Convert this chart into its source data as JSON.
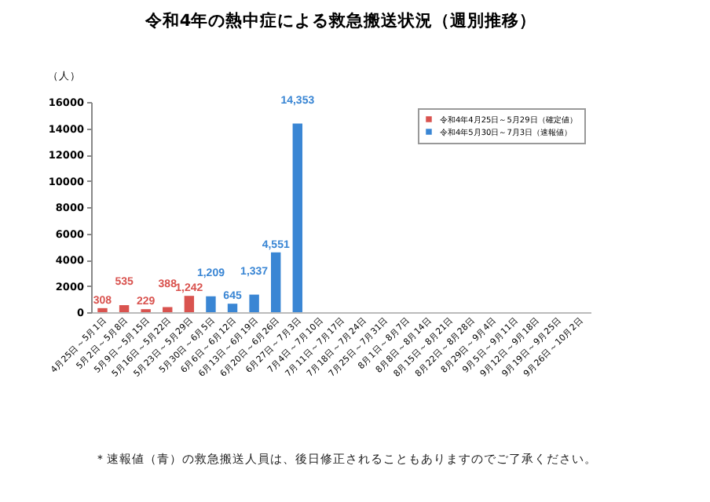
{
  "chart_data": {
    "type": "bar",
    "title": "令和4年の熱中症による救急搬送状況（週別推移）",
    "ylabel": "（人）",
    "categories": [
      "4月25日～5月1日",
      "5月2日～5月8日",
      "5月9日～5月15日",
      "5月16日～5月22日",
      "5月23日～5月29日",
      "5月30日～6月5日",
      "6月6日～6月12日",
      "6月13日～6月19日",
      "6月20日～6月26日",
      "6月27日～7月3日",
      "7月4日～7月10日",
      "7月11日～7月17日",
      "7月18日～7月24日",
      "7月25日～7月31日",
      "8月1日～8月7日",
      "8月8日～8月14日",
      "8月15日～8月21日",
      "8月22日～8月28日",
      "8月29日～9月4日",
      "9月5日～9月11日",
      "9月12日～9月18日",
      "9月19日～9月25日",
      "9月26日～10月2日"
    ],
    "series": [
      {
        "name": "令和4年4月25日～5月29日（確定値）",
        "color": "#d9534f",
        "values": [
          308,
          535,
          229,
          388,
          1242,
          null,
          null,
          null,
          null,
          null,
          null,
          null,
          null,
          null,
          null,
          null,
          null,
          null,
          null,
          null,
          null,
          null,
          null
        ],
        "value_labels": [
          "308",
          "535",
          "229",
          "388",
          "1,242",
          null,
          null,
          null,
          null,
          null,
          null,
          null,
          null,
          null,
          null,
          null,
          null,
          null,
          null,
          null,
          null,
          null,
          null
        ]
      },
      {
        "name": "令和4年5月30日～7月3日（速報値）",
        "color": "#3a86d4",
        "values": [
          null,
          null,
          null,
          null,
          null,
          1209,
          645,
          1337,
          4551,
          14353,
          null,
          null,
          null,
          null,
          null,
          null,
          null,
          null,
          null,
          null,
          null,
          null,
          null
        ],
        "value_labels": [
          null,
          null,
          null,
          null,
          null,
          "1,209",
          "645",
          "1,337",
          "4,551",
          "14,353",
          null,
          null,
          null,
          null,
          null,
          null,
          null,
          null,
          null,
          null,
          null,
          null,
          null
        ]
      }
    ],
    "ylim": [
      0,
      16000
    ],
    "yticks": [
      0,
      2000,
      4000,
      6000,
      8000,
      10000,
      12000,
      14000,
      16000
    ],
    "legend": "top right",
    "annotations": [
      "＊速報値（青）の救急搬送人員は、後日修正されることもありますのでご了承ください。"
    ]
  }
}
